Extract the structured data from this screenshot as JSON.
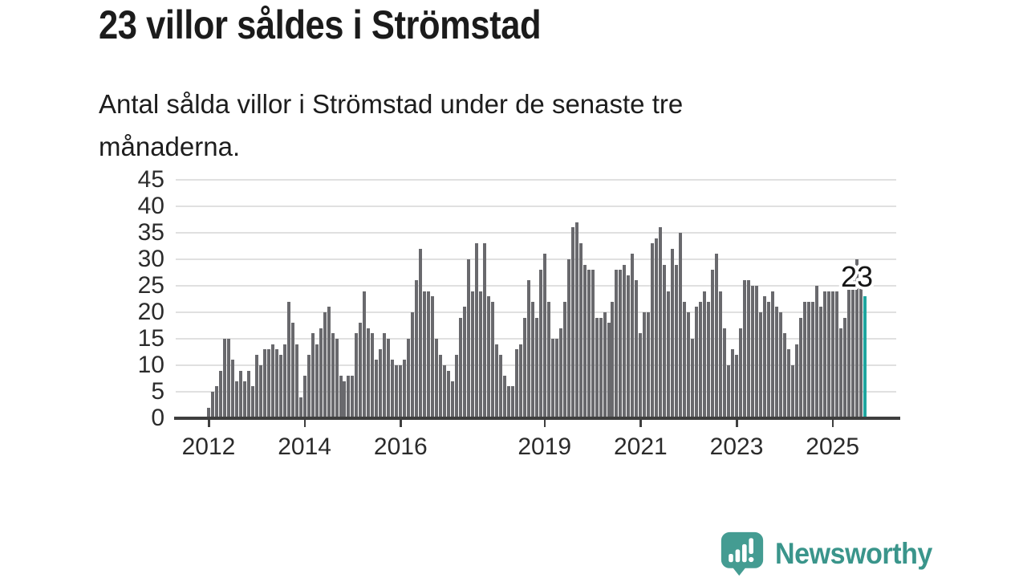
{
  "title": "23 villor såldes i Strömstad",
  "subtitle": "Antal sålda villor i Strömstad under de senaste tre månaderna.",
  "annotation": {
    "value_label": "23"
  },
  "branding": {
    "name": "Newsworthy",
    "logo_icon": "newsworthy-speech-bubble-bar-chart-icon"
  },
  "colors": {
    "background": "#ffffff",
    "bar": "#69696d",
    "highlight_bar": "#1fa69f",
    "grid": "#e0e0e0",
    "axis": "#3f3f3f",
    "text": "#1b1b1b",
    "axis_text": "#2b2b2b",
    "brand": "#449c92"
  },
  "chart_data": {
    "type": "bar",
    "title": "23 villor såldes i Strömstad",
    "subtitle": "Antal sålda villor i Strömstad under de senaste tre månaderna.",
    "xlabel": "",
    "ylabel": "",
    "frequency": "monthly",
    "x_start": "2012-01",
    "x_end": "2025-09",
    "ylim": [
      0,
      45
    ],
    "y_ticks": [
      0,
      5,
      10,
      15,
      20,
      25,
      30,
      35,
      40,
      45
    ],
    "grid": "horizontal",
    "legend_position": "none",
    "x_ticks": [
      {
        "label": "2012",
        "month_index": 0
      },
      {
        "label": "2014",
        "month_index": 24
      },
      {
        "label": "2016",
        "month_index": 48
      },
      {
        "label": "2019",
        "month_index": 84
      },
      {
        "label": "2021",
        "month_index": 108
      },
      {
        "label": "2023",
        "month_index": 132
      },
      {
        "label": "2025",
        "month_index": 156
      }
    ],
    "values": [
      2,
      5,
      6,
      9,
      15,
      15,
      11,
      7,
      9,
      7,
      9,
      6,
      12,
      10,
      13,
      13,
      14,
      13,
      12,
      14,
      22,
      18,
      14,
      4,
      8,
      12,
      16,
      14,
      17,
      20,
      21,
      16,
      15,
      8,
      7,
      8,
      8,
      16,
      18,
      24,
      17,
      16,
      11,
      13,
      16,
      15,
      11,
      10,
      10,
      11,
      15,
      20,
      26,
      32,
      24,
      24,
      23,
      15,
      12,
      10,
      9,
      7,
      12,
      19,
      21,
      30,
      24,
      33,
      24,
      33,
      23,
      22,
      14,
      12,
      8,
      6,
      6,
      13,
      14,
      19,
      26,
      22,
      19,
      28,
      31,
      22,
      15,
      15,
      17,
      22,
      30,
      36,
      37,
      33,
      29,
      28,
      28,
      19,
      19,
      20,
      18,
      22,
      28,
      28,
      29,
      27,
      31,
      26,
      16,
      20,
      20,
      33,
      34,
      36,
      29,
      24,
      32,
      29,
      35,
      22,
      20,
      15,
      21,
      22,
      24,
      22,
      28,
      31,
      24,
      17,
      10,
      13,
      12,
      17,
      26,
      26,
      25,
      25,
      20,
      23,
      22,
      24,
      21,
      20,
      16,
      13,
      10,
      14,
      19,
      22,
      22,
      22,
      25,
      21,
      24,
      24,
      24,
      24,
      17,
      19,
      25,
      26,
      30,
      25,
      23
    ],
    "highlight_last_bar": true,
    "last_value": 23
  }
}
